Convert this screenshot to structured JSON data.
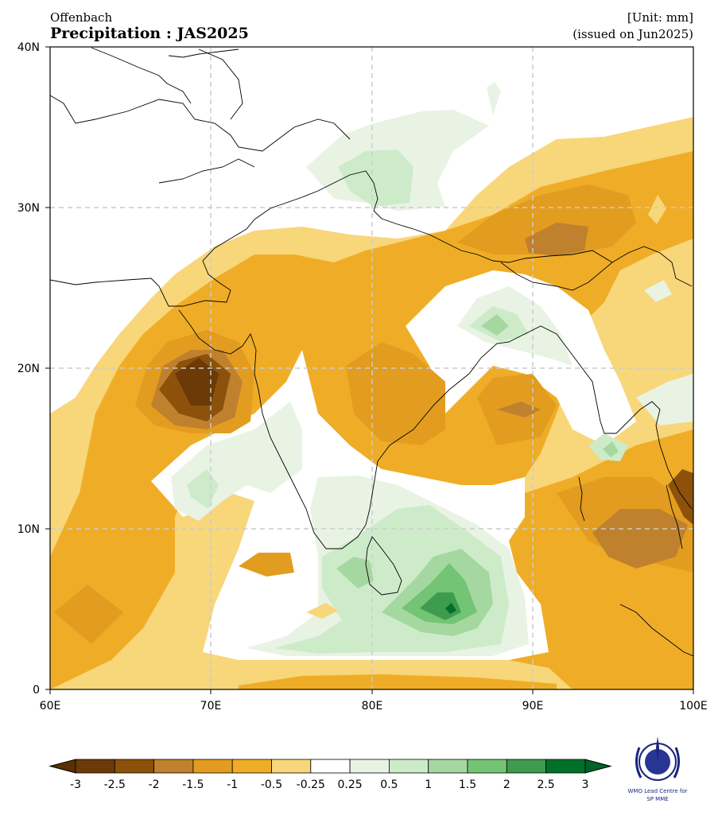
{
  "header": {
    "source": "Offenbach",
    "title": "Precipitation : JAS2025",
    "unit": "[Unit: mm]",
    "issued": "(issued on Jun2025)"
  },
  "map": {
    "lon_range": [
      60,
      100
    ],
    "lat_range": [
      0,
      40
    ],
    "lon_ticks": [
      "60E",
      "70E",
      "80E",
      "90E",
      "100E"
    ],
    "lat_ticks": [
      "40N",
      "30N",
      "20N",
      "10N",
      "0"
    ],
    "gridlines": true
  },
  "colorbar": {
    "levels": [
      "-3",
      "-2.5",
      "-2",
      "-1.5",
      "-1",
      "-0.5",
      "-0.25",
      "0.25",
      "0.5",
      "1",
      "1.5",
      "2",
      "2.5",
      "3"
    ],
    "colors": [
      "#6b3a06",
      "#8c510a",
      "#bf812d",
      "#e29c1f",
      "#efad27",
      "#f8d67a",
      "#ffffff",
      "#e8f3e4",
      "#cdebc9",
      "#a5d8a0",
      "#74c476",
      "#3e9c4f",
      "#00702a"
    ],
    "under_color": "#5a3004",
    "over_color": "#00642a"
  },
  "logo": {
    "line1": "WMO Lead Centre for",
    "line2": "SP MME"
  }
}
